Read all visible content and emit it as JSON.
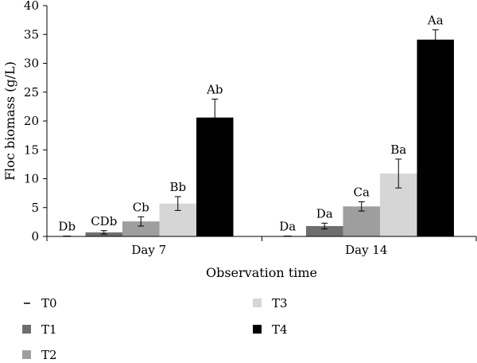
{
  "chart_data": {
    "type": "bar",
    "title": "",
    "xlabel": "Observation time",
    "ylabel": "Floc biomass (g/L)",
    "ylim": [
      0,
      40
    ],
    "yticks": [
      0,
      5,
      10,
      15,
      20,
      25,
      30,
      35,
      40
    ],
    "categories": [
      "Day 7",
      "Day 14"
    ],
    "grid": false,
    "legend_position": "bottom",
    "series": [
      {
        "name": "T0",
        "color": "#000000",
        "values": [
          0.1,
          0.1
        ],
        "errors": [
          0,
          0
        ],
        "labels": [
          "Db",
          "Da"
        ]
      },
      {
        "name": "T1",
        "color": "#6e6e6e",
        "values": [
          0.7,
          1.8
        ],
        "errors": [
          0.3,
          0.5
        ],
        "labels": [
          "CDb",
          "Da"
        ]
      },
      {
        "name": "T2",
        "color": "#9e9e9e",
        "values": [
          2.6,
          5.2
        ],
        "errors": [
          0.8,
          0.8
        ],
        "labels": [
          "Cb",
          "Ca"
        ]
      },
      {
        "name": "T3",
        "color": "#d6d6d6",
        "values": [
          5.7,
          10.9
        ],
        "errors": [
          1.2,
          2.5
        ],
        "labels": [
          "Bb",
          "Ba"
        ]
      },
      {
        "name": "T4",
        "color": "#000000",
        "values": [
          20.6,
          34.1
        ],
        "errors": [
          3.2,
          1.7
        ],
        "labels": [
          "Ab",
          "Aa"
        ]
      }
    ]
  }
}
